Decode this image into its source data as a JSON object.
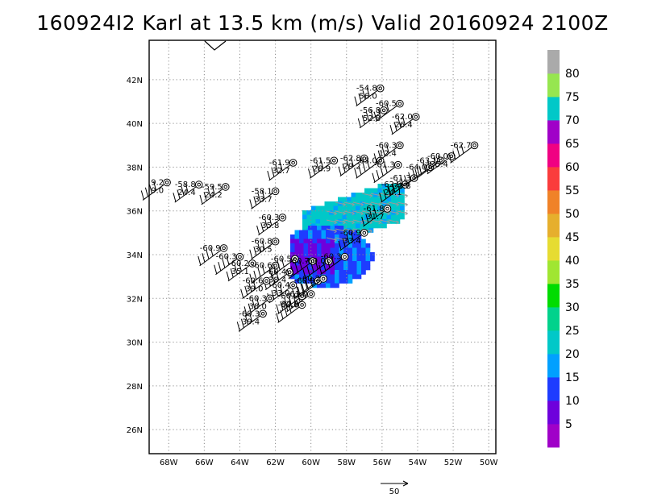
{
  "title": "160924I2 Karl at 13.5 km (m/s) Valid 20160924 2100Z",
  "map": {
    "lon_range": [
      -69.1,
      -49.6
    ],
    "lat_range": [
      24.9,
      43.8
    ],
    "lon_ticks": [
      {
        "value": -68,
        "label": "68W"
      },
      {
        "value": -66,
        "label": "66W"
      },
      {
        "value": -64,
        "label": "64W"
      },
      {
        "value": -62,
        "label": "62W"
      },
      {
        "value": -60,
        "label": "60W"
      },
      {
        "value": -58,
        "label": "58W"
      },
      {
        "value": -56,
        "label": "56W"
      },
      {
        "value": -54,
        "label": "54W"
      },
      {
        "value": -52,
        "label": "52W"
      },
      {
        "value": -50,
        "label": "50W"
      }
    ],
    "lat_ticks": [
      {
        "value": 26,
        "label": "26N"
      },
      {
        "value": 28,
        "label": "28N"
      },
      {
        "value": 30,
        "label": "30N"
      },
      {
        "value": 32,
        "label": "32N"
      },
      {
        "value": 34,
        "label": "34N"
      },
      {
        "value": 36,
        "label": "36N"
      },
      {
        "value": 38,
        "label": "38N"
      },
      {
        "value": 40,
        "label": "40N"
      },
      {
        "value": 42,
        "label": "42N"
      }
    ],
    "grid": "dotted"
  },
  "vector_scale_label": "50",
  "colorbar": {
    "labels": [
      "5",
      "10",
      "15",
      "20",
      "25",
      "30",
      "35",
      "40",
      "45",
      "50",
      "55",
      "60",
      "65",
      "70",
      "75",
      "80"
    ],
    "colors": [
      "#a000c8",
      "#6e00dc",
      "#1e3cff",
      "#00a0ff",
      "#00c8c8",
      "#00d28c",
      "#00dc00",
      "#a0e632",
      "#e6dc32",
      "#e6af2d",
      "#f08228",
      "#fa3c3c",
      "#f00082",
      "#a000c8",
      "#00c8c8",
      "#96e650",
      "#aaaaaa"
    ]
  },
  "observations": [
    {
      "lon": -68.1,
      "lat": 37.3,
      "label": "9.2",
      "sub": "9.0"
    },
    {
      "lon": -66.3,
      "lat": 37.2,
      "label": "-58.8",
      "sub": "24.4"
    },
    {
      "lon": -64.8,
      "lat": 37.1,
      "label": "-59.5",
      "sub": "24.2"
    },
    {
      "lon": -62.0,
      "lat": 36.9,
      "label": "-58.1",
      "sub": "33.7"
    },
    {
      "lon": -61.6,
      "lat": 35.7,
      "label": "-60.3",
      "sub": "35.8"
    },
    {
      "lon": -62.0,
      "lat": 34.6,
      "label": "-60.8",
      "sub": "30.5"
    },
    {
      "lon": -64.9,
      "lat": 34.3,
      "label": "-60.9",
      "sub": ""
    },
    {
      "lon": -64.0,
      "lat": 33.9,
      "label": "-60.3",
      "sub": ""
    },
    {
      "lon": -63.3,
      "lat": 33.6,
      "label": "-60.2",
      "sub": "35.1"
    },
    {
      "lon": -62.0,
      "lat": 33.5,
      "label": "-60.6",
      "sub": ""
    },
    {
      "lon": -61.2,
      "lat": 33.2,
      "label": "-60.4",
      "sub": "38.4"
    },
    {
      "lon": -62.5,
      "lat": 32.8,
      "label": "-60.6",
      "sub": "39.0"
    },
    {
      "lon": -61.0,
      "lat": 32.6,
      "label": "-60.4",
      "sub": "33.0"
    },
    {
      "lon": -62.3,
      "lat": 32.0,
      "label": "-60.3",
      "sub": "38.0"
    },
    {
      "lon": -60.5,
      "lat": 32.1,
      "label": "-60.9",
      "sub": "32.8"
    },
    {
      "lon": -60.5,
      "lat": 31.7,
      "label": "-60.0",
      "sub": ""
    },
    {
      "lon": -62.7,
      "lat": 31.3,
      "label": "-60.3",
      "sub": "39.4"
    },
    {
      "lon": -60.0,
      "lat": 32.2,
      "label": "-61.0",
      "sub": ""
    },
    {
      "lon": -59.6,
      "lat": 32.8,
      "label": "-60.9",
      "sub": ""
    },
    {
      "lon": -59.3,
      "lat": 32.9,
      "label": "-60.2",
      "sub": ""
    },
    {
      "lon": -60.9,
      "lat": 33.8,
      "label": "-60.5",
      "sub": ""
    },
    {
      "lon": -59.9,
      "lat": 33.7,
      "label": "-60.7",
      "sub": ""
    },
    {
      "lon": -59.0,
      "lat": 33.7,
      "label": "-60.0",
      "sub": ""
    },
    {
      "lon": -58.1,
      "lat": 33.9,
      "label": "-60.3",
      "sub": ""
    },
    {
      "lon": -57.0,
      "lat": 35.0,
      "label": "-60.9",
      "sub": "33.4"
    },
    {
      "lon": -55.7,
      "lat": 36.1,
      "label": "-61.8",
      "sub": "31.7"
    },
    {
      "lon": -61.0,
      "lat": 38.2,
      "label": "-61.9",
      "sub": "32.7"
    },
    {
      "lon": -58.7,
      "lat": 38.3,
      "label": "-61.5",
      "sub": "28.9"
    },
    {
      "lon": -57.0,
      "lat": 38.4,
      "label": "-62.8",
      "sub": "29.2"
    },
    {
      "lon": -56.1,
      "lat": 38.3,
      "label": "-63.0",
      "sub": ""
    },
    {
      "lon": -55.0,
      "lat": 39.0,
      "label": "-60.3",
      "sub": "12.4"
    },
    {
      "lon": -55.1,
      "lat": 38.1,
      "label": "-61.3",
      "sub": ""
    },
    {
      "lon": -54.7,
      "lat": 37.2,
      "label": "-62.9",
      "sub": "24.1"
    },
    {
      "lon": -54.2,
      "lat": 37.5,
      "label": "-61.3",
      "sub": "32.8"
    },
    {
      "lon": -53.3,
      "lat": 38.0,
      "label": "-64.0",
      "sub": ""
    },
    {
      "lon": -52.7,
      "lat": 38.3,
      "label": "-63.1",
      "sub": ""
    },
    {
      "lon": -52.1,
      "lat": 38.5,
      "label": "-60.0",
      "sub": "35.4"
    },
    {
      "lon": -50.8,
      "lat": 39.0,
      "label": "-62.7",
      "sub": ""
    },
    {
      "lon": -54.1,
      "lat": 40.3,
      "label": "-62.0",
      "sub": "26.4"
    },
    {
      "lon": -55.0,
      "lat": 40.9,
      "label": "-60.5",
      "sub": ""
    },
    {
      "lon": -55.9,
      "lat": 40.6,
      "label": "-56.8",
      "sub": "52.8"
    },
    {
      "lon": -56.1,
      "lat": 41.6,
      "label": "-54.8",
      "sub": "56.0"
    }
  ]
}
